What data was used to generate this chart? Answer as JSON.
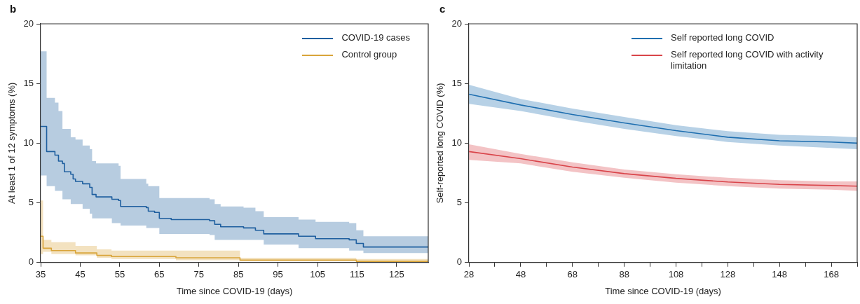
{
  "chart_data": [
    {
      "type": "step",
      "title": "b",
      "xlabel": "Time since COVID-19 (days)",
      "ylabel": "At least 1 of 12 symptoms (%)",
      "xlim": [
        35,
        133
      ],
      "xticks": [
        35,
        45,
        55,
        65,
        75,
        85,
        95,
        105,
        115,
        125
      ],
      "ylim": [
        0,
        20
      ],
      "yticks": [
        0,
        5,
        10,
        15,
        20
      ],
      "grid": false,
      "legend": "top right",
      "marker": "none",
      "series": [
        {
          "name": "COVID-19 cases",
          "color": "#1f5fa0",
          "x": [
            35,
            36.5,
            38.6,
            39.5,
            40.5,
            41,
            42.6,
            43.2,
            43.8,
            45.6,
            47.4,
            48,
            49,
            53,
            54.7,
            55.2,
            61.7,
            62.2,
            63.8,
            65,
            68,
            77.7,
            79,
            80.5,
            86.3,
            89.3,
            91.4,
            100.2,
            104.5,
            113,
            114.8,
            116.6,
            133
          ],
          "values": [
            11.4,
            9.3,
            9.0,
            8.5,
            8.3,
            7.6,
            7.4,
            7.0,
            6.8,
            6.6,
            6.3,
            5.7,
            5.5,
            5.3,
            5.2,
            4.7,
            4.6,
            4.3,
            4.2,
            3.7,
            3.6,
            3.5,
            3.2,
            3.0,
            2.9,
            2.7,
            2.4,
            2.2,
            2.0,
            1.9,
            1.6,
            1.3,
            1.3
          ],
          "lower": [
            7.3,
            6.4,
            6.0,
            6.0,
            5.3,
            5.3,
            4.9,
            4.9,
            4.9,
            4.5,
            4.1,
            3.7,
            3.7,
            3.3,
            3.3,
            3.1,
            2.9,
            2.9,
            2.9,
            2.4,
            2.4,
            2.3,
            1.9,
            1.9,
            1.9,
            1.9,
            1.5,
            1.2,
            1.2,
            1.0,
            1.0,
            0.8,
            0.8
          ],
          "upper": [
            17.7,
            13.8,
            13.4,
            12.7,
            11.2,
            11.2,
            10.5,
            10.5,
            10.3,
            9.8,
            9.5,
            8.5,
            8.3,
            8.3,
            8.1,
            7.0,
            6.6,
            6.4,
            6.4,
            5.4,
            5.4,
            5.3,
            4.9,
            4.7,
            4.6,
            4.3,
            3.8,
            3.6,
            3.4,
            3.3,
            2.7,
            2.2,
            2.2
          ]
        },
        {
          "name": "Control group",
          "color": "#d9a53a",
          "x": [
            35,
            35.6,
            37.7,
            43.8,
            49.2,
            52.9,
            69.2,
            85.4,
            114.8,
            133
          ],
          "values": [
            2.2,
            1.2,
            1.0,
            0.8,
            0.6,
            0.5,
            0.4,
            0.2,
            0.1,
            0.1
          ],
          "lower": [
            0.7,
            0.9,
            0.7,
            0.6,
            0.4,
            0.3,
            0.2,
            0.1,
            0.05,
            0.05
          ],
          "upper": [
            5.2,
            1.9,
            1.7,
            1.4,
            1.1,
            1.0,
            1.0,
            0.4,
            0.3,
            0.3
          ]
        }
      ]
    },
    {
      "type": "line",
      "title": "c",
      "xlabel": "Time since COVID-19 (days)",
      "ylabel": "Self-reported long COVID (%)",
      "xlim": [
        28,
        178
      ],
      "xticks": [
        28,
        {
          "value": 38,
          "label": null
        },
        48,
        {
          "value": 58,
          "label": null
        },
        68,
        {
          "value": 78,
          "label": null
        },
        88,
        {
          "value": 98,
          "label": null
        },
        108,
        {
          "value": 118,
          "label": null
        },
        128,
        {
          "value": 138,
          "label": null
        },
        148,
        {
          "value": 158,
          "label": null
        },
        168,
        {
          "value": 178,
          "label": null
        }
      ],
      "ylim": [
        0,
        20
      ],
      "yticks": [
        0,
        5,
        10,
        15,
        20
      ],
      "grid": false,
      "legend": "top right",
      "marker": "none",
      "series": [
        {
          "name": "Self reported long COVID",
          "color": "#1f6fb0",
          "x": [
            28,
            48,
            68,
            88,
            108,
            128,
            148,
            168,
            178
          ],
          "values": [
            14.1,
            13.2,
            12.4,
            11.7,
            11.05,
            10.5,
            10.2,
            10.1,
            10.0
          ],
          "lower": [
            13.3,
            12.7,
            11.9,
            11.2,
            10.6,
            10.1,
            9.8,
            9.6,
            9.5
          ],
          "upper": [
            14.9,
            13.7,
            12.9,
            12.2,
            11.5,
            11.0,
            10.7,
            10.6,
            10.5
          ]
        },
        {
          "name": "Self reported long COVID with activity limitation",
          "color": "#d9454a",
          "x": [
            28,
            48,
            68,
            88,
            108,
            128,
            148,
            168,
            178
          ],
          "values": [
            9.3,
            8.7,
            8.0,
            7.45,
            7.05,
            6.75,
            6.55,
            6.45,
            6.4
          ],
          "lower": [
            8.6,
            8.3,
            7.6,
            7.1,
            6.7,
            6.4,
            6.2,
            6.1,
            6.0
          ],
          "upper": [
            9.9,
            9.1,
            8.4,
            7.8,
            7.4,
            7.1,
            6.9,
            6.8,
            6.8
          ]
        }
      ]
    }
  ]
}
